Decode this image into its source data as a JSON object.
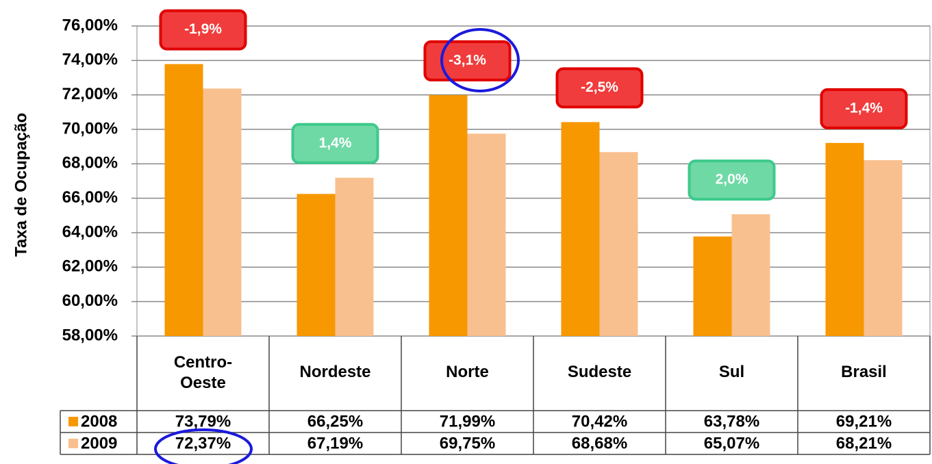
{
  "chart_data": {
    "type": "bar",
    "y_label": "Taxa de Ocupação",
    "categories": [
      "Centro-\nOeste",
      "Nordeste",
      "Norte",
      "Sudeste",
      "Sul",
      "Brasil"
    ],
    "series": [
      {
        "name": "2008",
        "color": "#f79800",
        "values": [
          73.79,
          66.25,
          71.99,
          70.42,
          63.78,
          69.21
        ],
        "value_labels": [
          "73,79%",
          "66,25%",
          "71,99%",
          "70,42%",
          "63,78%",
          "69,21%"
        ]
      },
      {
        "name": "2009",
        "color": "#f9c08f",
        "values": [
          72.37,
          67.19,
          69.75,
          68.68,
          65.07,
          68.21
        ],
        "value_labels": [
          "72,37%",
          "67,19%",
          "69,75%",
          "68,68%",
          "65,07%",
          "68,21%"
        ]
      }
    ],
    "annotations": [
      {
        "text": "-1,9%",
        "color": "#f03c3c"
      },
      {
        "text": "1,4%",
        "color": "#6fd9a6"
      },
      {
        "text": "-3,1%",
        "color": "#f03c3c"
      },
      {
        "text": "-2,5%",
        "color": "#f03c3c"
      },
      {
        "text": "2,0%",
        "color": "#6fd9a6"
      },
      {
        "text": "-1,4%",
        "color": "#f03c3c"
      }
    ],
    "ylim": [
      58,
      76
    ],
    "yticks": [
      {
        "value": 58,
        "label": "58,00%"
      },
      {
        "value": 60,
        "label": "60,00%"
      },
      {
        "value": 62,
        "label": "62,00%"
      },
      {
        "value": 64,
        "label": "64,00%"
      },
      {
        "value": 66,
        "label": "66,00%"
      },
      {
        "value": 68,
        "label": "68,00%"
      },
      {
        "value": 70,
        "label": "70,00%"
      },
      {
        "value": 72,
        "label": "72,00%"
      },
      {
        "value": 74,
        "label": "74,00%"
      },
      {
        "value": 76,
        "label": "76,00%"
      }
    ],
    "grid": true
  }
}
